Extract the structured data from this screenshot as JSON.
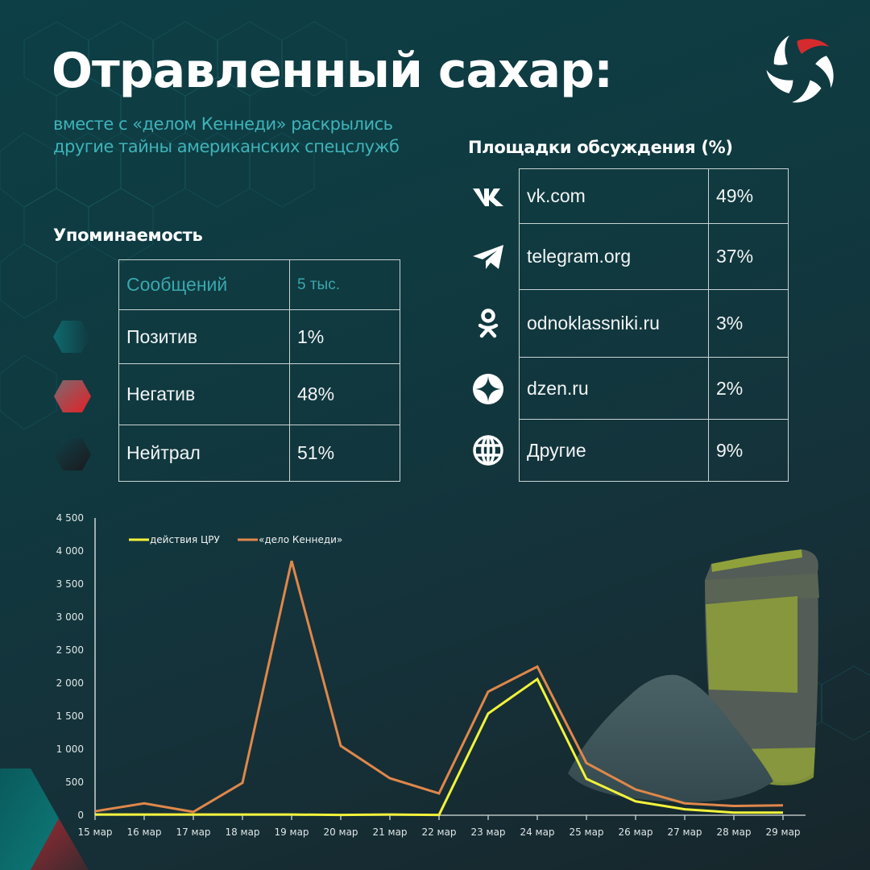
{
  "header": {
    "title": "Отравленный сахар:",
    "subtitle_line1": "вместе с «делом Кеннеди» раскрылись",
    "subtitle_line2": "другие тайны американских спецслужб",
    "logo": "pinwheel-logo"
  },
  "mentions": {
    "heading": "Упоминаемость",
    "rows": [
      {
        "label": "Сообщений",
        "value": "5 тыс.",
        "marker": null
      },
      {
        "label": "Позитив",
        "value": "1%",
        "marker": "teal-hexagon"
      },
      {
        "label": "Негатив",
        "value": "48%",
        "marker": "red-hexagon"
      },
      {
        "label": "Нейтрал",
        "value": "51%",
        "marker": "dark-hexagon"
      }
    ]
  },
  "platforms": {
    "heading": "Площадки обсуждения (%)",
    "rows": [
      {
        "icon": "vk-icon",
        "name": "vk.com",
        "value": "49%"
      },
      {
        "icon": "telegram-icon",
        "name": "telegram.org",
        "value": "37%"
      },
      {
        "icon": "odnoklassniki-icon",
        "name": "odnoklassniki.ru",
        "value": "3%"
      },
      {
        "icon": "dzen-icon",
        "name": "dzen.ru",
        "value": "2%"
      },
      {
        "icon": "globe-icon",
        "name": "Другие",
        "value": "9%"
      }
    ]
  },
  "colors": {
    "accent_teal": "#3fb3b8",
    "series_cia": "#f2f23a",
    "series_kennedy": "#e0874a",
    "negative_red": "#e0282e"
  },
  "chart_data": {
    "type": "line",
    "title": "",
    "xlabel": "",
    "ylabel": "",
    "categories": [
      "15 мар",
      "16 мар",
      "17 мар",
      "18 мар",
      "19 мар",
      "20 мар",
      "21 мар",
      "22 мар",
      "23 мар",
      "24 мар",
      "25 мар",
      "26 мар",
      "27 мар",
      "28 мар",
      "29 мар"
    ],
    "series": [
      {
        "name": "действия ЦРУ",
        "color": "#f2f23a",
        "values": [
          10,
          10,
          10,
          10,
          10,
          5,
          10,
          5,
          1540,
          2060,
          550,
          210,
          90,
          40,
          40
        ]
      },
      {
        "name": "«дело Кеннеди»",
        "color": "#e0874a",
        "values": [
          60,
          180,
          50,
          490,
          3850,
          1050,
          560,
          330,
          1870,
          2250,
          790,
          390,
          180,
          140,
          150
        ]
      }
    ],
    "yticks": [
      "0",
      "500",
      "1 000",
      "1 500",
      "2 000",
      "2 500",
      "3 000",
      "3 500",
      "4 000",
      "4 500"
    ],
    "ylim": [
      0,
      4500
    ],
    "grid": false,
    "legend_position": "top-left inside"
  }
}
